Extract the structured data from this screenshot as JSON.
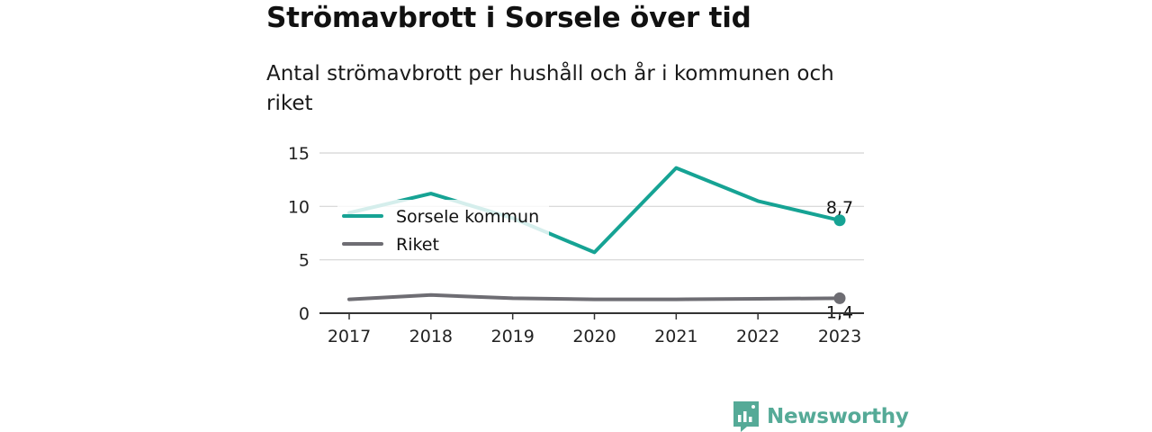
{
  "header": {
    "title": "Strömavbrott i Sorsele över tid",
    "subtitle": "Antal strömavbrott per hushåll och år i kommunen och riket"
  },
  "chart_data": {
    "type": "line",
    "x": [
      "2017",
      "2018",
      "2019",
      "2020",
      "2021",
      "2022",
      "2023"
    ],
    "y_ticks": [
      "0",
      "5",
      "10",
      "15"
    ],
    "ylim": [
      0,
      15
    ],
    "grid": true,
    "legend_position": "upper-left",
    "series": [
      {
        "name": "Sorsele kommun",
        "color": "#16a394",
        "values": [
          9.4,
          11.2,
          8.9,
          5.7,
          13.6,
          10.5,
          8.7
        ],
        "end_label": "8,7"
      },
      {
        "name": "Riket",
        "color": "#6e6d73",
        "values": [
          1.3,
          1.7,
          1.4,
          1.3,
          1.3,
          1.35,
          1.4
        ],
        "end_label": "1,4"
      }
    ]
  },
  "branding": {
    "logo_text": "Newsworthy",
    "logo_color": "#55aa97",
    "logo_icon": "newsworthy-chart-icon"
  }
}
